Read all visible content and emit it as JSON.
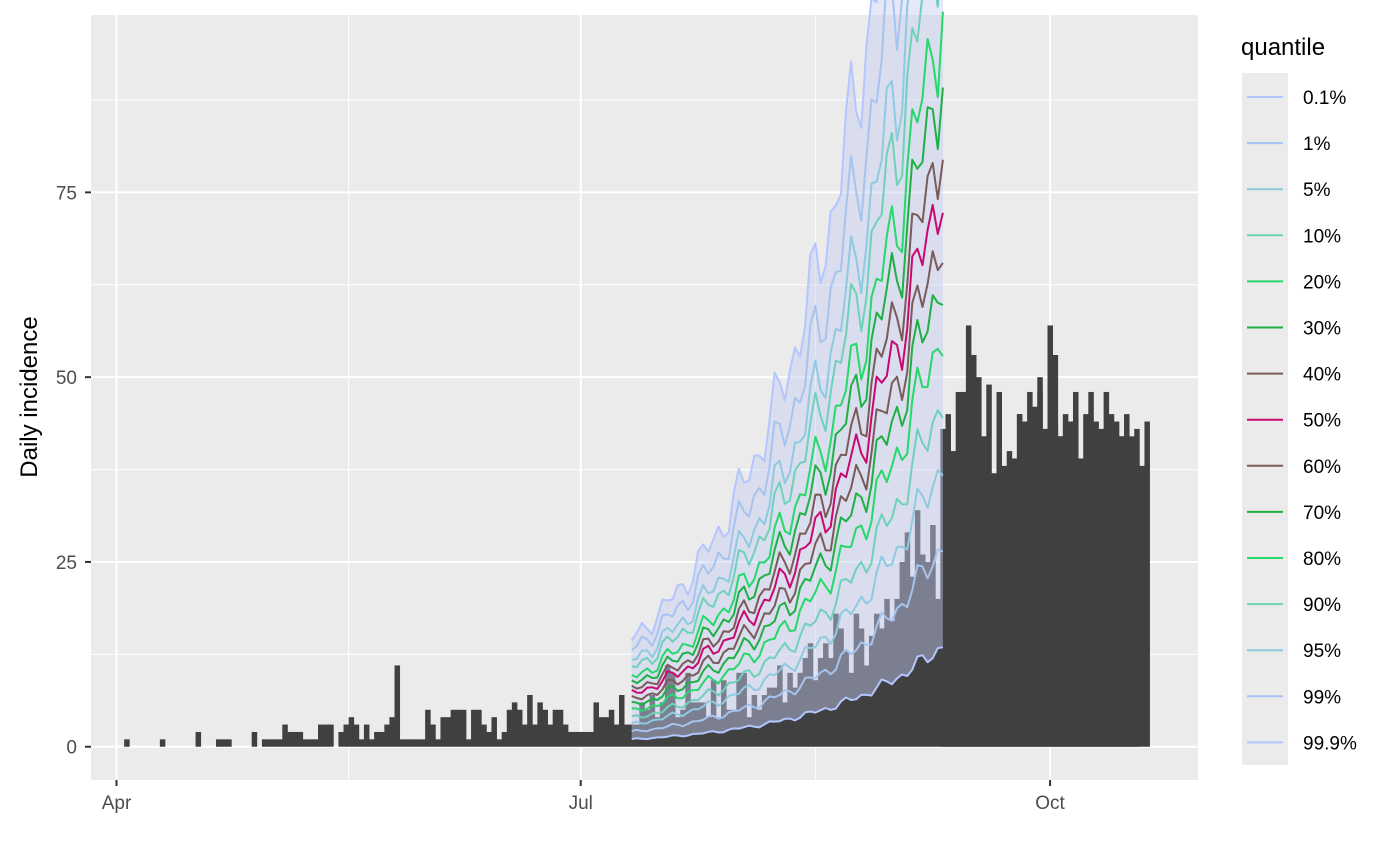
{
  "chart_data": {
    "type": "bar",
    "ylabel": "Daily incidence",
    "xlabel": "",
    "xlim": [
      "2020-03-27",
      "2020-10-30"
    ],
    "ylim": [
      -4.5,
      99
    ],
    "x_ticks": [
      {
        "date": "2020-04-01",
        "label": "Apr"
      },
      {
        "date": "2020-07-01",
        "label": "Jul"
      },
      {
        "date": "2020-10-01",
        "label": "Oct"
      }
    ],
    "y_ticks": [
      0,
      25,
      50,
      75
    ],
    "grid": true,
    "legend": {
      "title": "quantile",
      "position": "right",
      "entries": [
        {
          "label": "0.1%",
          "color": "#b3c6ff"
        },
        {
          "label": "1%",
          "color": "#a6c4f0"
        },
        {
          "label": "5%",
          "color": "#8ecae0"
        },
        {
          "label": "10%",
          "color": "#6fd2b8"
        },
        {
          "label": "20%",
          "color": "#26d86a"
        },
        {
          "label": "30%",
          "color": "#1fb044"
        },
        {
          "label": "40%",
          "color": "#7b5a5a"
        },
        {
          "label": "50%",
          "color": "#c9096f"
        },
        {
          "label": "60%",
          "color": "#7b5a5a"
        },
        {
          "label": "70%",
          "color": "#1fb044"
        },
        {
          "label": "80%",
          "color": "#26d86a"
        },
        {
          "label": "90%",
          "color": "#6fd2b8"
        },
        {
          "label": "95%",
          "color": "#8ecae0"
        },
        {
          "label": "99%",
          "color": "#a6c4f0"
        },
        {
          "label": "99.9%",
          "color": "#b3c6ff"
        }
      ]
    },
    "bar_color": "#404040",
    "observed": {
      "start_date": "2020-04-01",
      "values": [
        0,
        0,
        1,
        0,
        0,
        0,
        0,
        0,
        0,
        1,
        0,
        0,
        0,
        0,
        0,
        0,
        2,
        0,
        0,
        0,
        1,
        1,
        1,
        0,
        0,
        0,
        0,
        2,
        0,
        1,
        1,
        1,
        1,
        3,
        2,
        2,
        2,
        1,
        1,
        1,
        3,
        3,
        3,
        0,
        2,
        3,
        4,
        3,
        1,
        3,
        1,
        2,
        2,
        3,
        4,
        11,
        1,
        1,
        1,
        1,
        1,
        5,
        3,
        1,
        4,
        4,
        5,
        5,
        5,
        1,
        5,
        5,
        3,
        2,
        4,
        1,
        2,
        5,
        6,
        5,
        3,
        7,
        3,
        6,
        5,
        3,
        5,
        5,
        3,
        2,
        2,
        2,
        2,
        2,
        6,
        4,
        4,
        5,
        3,
        7,
        3,
        3,
        3,
        6,
        5,
        7,
        4,
        6,
        11,
        10,
        4,
        5,
        10,
        6,
        6,
        6,
        4,
        9,
        4,
        9,
        5,
        5,
        10,
        10,
        4,
        7,
        5,
        7,
        8,
        8,
        11,
        6,
        10,
        8,
        10,
        12,
        14,
        9,
        12,
        14,
        12,
        18,
        16,
        13,
        10,
        18,
        16,
        11,
        15,
        18,
        16,
        20,
        17,
        20,
        25,
        29,
        23,
        32,
        26,
        25,
        30,
        20,
        28,
        32,
        31,
        33,
        28,
        29,
        37,
        33,
        42,
        34,
        37,
        42,
        38,
        40,
        39,
        45,
        44,
        43,
        45,
        50,
        43,
        57,
        53,
        42,
        42,
        44,
        48,
        39,
        45,
        48,
        44,
        43,
        48,
        45,
        44,
        42,
        45,
        42,
        43
      ],
      "upper_start_date": "2020-09-10",
      "upper_values": [
        43,
        45,
        40,
        48,
        48,
        57,
        53,
        50,
        36,
        49,
        36,
        48,
        36,
        36,
        39,
        45,
        41,
        48,
        46,
        48,
        33,
        44,
        44,
        42,
        45,
        31,
        39,
        38,
        38,
        39,
        37,
        37,
        37,
        44,
        33,
        42,
        35,
        41,
        31,
        38,
        44
      ]
    },
    "quantiles": {
      "start_date": "2020-07-11",
      "series": [
        {
          "name": "0.1%",
          "base": 1.0,
          "growth": 0.043,
          "color": "#b3c6ff"
        },
        {
          "name": "1%",
          "base": 2.0,
          "growth": 0.043,
          "color": "#a6c4f0"
        },
        {
          "name": "5%",
          "base": 3.0,
          "growth": 0.042,
          "color": "#8ecae0"
        },
        {
          "name": "10%",
          "base": 3.8,
          "growth": 0.0415,
          "color": "#6fd2b8"
        },
        {
          "name": "20%",
          "base": 4.7,
          "growth": 0.041,
          "color": "#26d86a"
        },
        {
          "name": "30%",
          "base": 5.5,
          "growth": 0.0405,
          "color": "#1fb044"
        },
        {
          "name": "40%",
          "base": 6.2,
          "growth": 0.04,
          "color": "#7b5a5a"
        },
        {
          "name": "50%",
          "base": 7.0,
          "growth": 0.0395,
          "color": "#c9096f"
        },
        {
          "name": "60%",
          "base": 7.6,
          "growth": 0.0395,
          "color": "#7b5a5a"
        },
        {
          "name": "70%",
          "base": 8.4,
          "growth": 0.0395,
          "color": "#1fb044"
        },
        {
          "name": "80%",
          "base": 9.2,
          "growth": 0.0395,
          "color": "#26d86a"
        },
        {
          "name": "90%",
          "base": 10.5,
          "growth": 0.0395,
          "color": "#6fd2b8"
        },
        {
          "name": "95%",
          "base": 11.5,
          "growth": 0.0395,
          "color": "#8ecae0"
        },
        {
          "name": "99%",
          "base": 13.0,
          "growth": 0.04,
          "color": "#a6c4f0"
        },
        {
          "name": "99.9%",
          "base": 14.5,
          "growth": 0.041,
          "color": "#b3c6ff"
        }
      ],
      "band_color": "#c4ccf2"
    }
  }
}
